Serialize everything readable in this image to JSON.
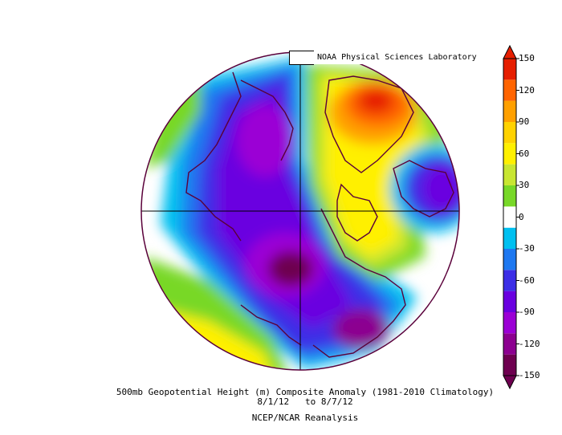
{
  "credit": "NOAA Physical Sciences Laboratory",
  "caption": {
    "line1": "500mb Geopotential Height (m) Composite Anomaly (1981-2010 Climatology)",
    "line2": "8/1/12   to 8/7/12",
    "line3": "NCEP/NCAR Reanalysis"
  },
  "colorbar": {
    "ticks": [
      "150",
      "120",
      "90",
      "60",
      "30",
      "0",
      "-30",
      "-60",
      "-90",
      "-120",
      "-150"
    ],
    "colors": [
      "#6e0050",
      "#8c0090",
      "#9b00d5",
      "#6a00e0",
      "#3c2ee6",
      "#1e78f0",
      "#00c0f0",
      "#ffffff",
      "#78d828",
      "#c8e632",
      "#fff000",
      "#ffd200",
      "#ffa000",
      "#ff6400",
      "#e61e00"
    ]
  },
  "colors": {
    "coast": "#5a003a",
    "border": "#000000"
  }
}
